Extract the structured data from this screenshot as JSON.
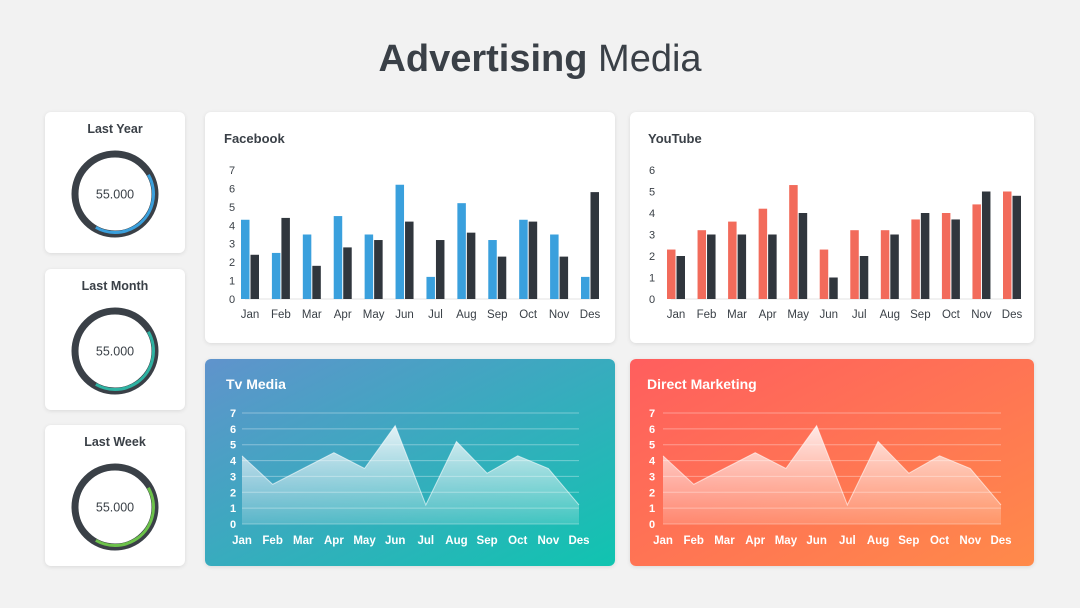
{
  "title": {
    "bold": "Advertising",
    "normal": "Media"
  },
  "stats": [
    {
      "label": "Last Year",
      "value": "55.000",
      "fraction": 0.4,
      "color": "#3aa0dd"
    },
    {
      "label": "Last Month",
      "value": "55.000",
      "fraction": 0.4,
      "color": "#2fb3a3"
    },
    {
      "label": "Last Week",
      "value": "55.000",
      "fraction": 0.4,
      "color": "#6cc24a"
    }
  ],
  "chart_data": [
    {
      "id": "facebook",
      "type": "bar",
      "title": "Facebook",
      "categories": [
        "Jan",
        "Feb",
        "Mar",
        "Apr",
        "May",
        "Jun",
        "Jul",
        "Aug",
        "Sep",
        "Oct",
        "Nov",
        "Des"
      ],
      "series": [
        {
          "values": [
            4.3,
            2.5,
            3.5,
            4.5,
            3.5,
            6.2,
            1.2,
            5.2,
            3.2,
            4.3,
            3.5,
            1.2
          ],
          "color": "#3aa0dd"
        },
        {
          "values": [
            2.4,
            4.4,
            1.8,
            2.8,
            3.2,
            4.2,
            3.2,
            3.6,
            2.3,
            4.2,
            2.3,
            5.8
          ],
          "color": "#30363d"
        }
      ],
      "yticks": [
        0,
        1,
        2,
        3,
        4,
        5,
        6,
        7
      ],
      "ylim": [
        0,
        7
      ]
    },
    {
      "id": "youtube",
      "type": "bar",
      "title": "YouTube",
      "categories": [
        "Jan",
        "Feb",
        "Mar",
        "Apr",
        "May",
        "Jun",
        "Jul",
        "Aug",
        "Sep",
        "Oct",
        "Nov",
        "Des"
      ],
      "series": [
        {
          "values": [
            2.3,
            3.2,
            3.6,
            4.2,
            5.3,
            2.3,
            3.2,
            3.2,
            3.7,
            4.0,
            4.4,
            5.0
          ],
          "color": "#f26b5b"
        },
        {
          "values": [
            2.0,
            3.0,
            3.0,
            3.0,
            4.0,
            1.0,
            2.0,
            3.0,
            4.0,
            3.7,
            5.0,
            4.8
          ],
          "color": "#30363d"
        }
      ],
      "yticks": [
        0,
        1,
        2,
        3,
        4,
        5,
        6
      ],
      "ylim": [
        0,
        6
      ]
    },
    {
      "id": "tv",
      "type": "area",
      "title": "Tv Media",
      "categories": [
        "Jan",
        "Feb",
        "Mar",
        "Apr",
        "May",
        "Jun",
        "Jul",
        "Aug",
        "Sep",
        "Oct",
        "Nov",
        "Des"
      ],
      "series": [
        {
          "values": [
            4.3,
            2.5,
            3.5,
            4.5,
            3.5,
            6.2,
            1.2,
            5.2,
            3.2,
            4.3,
            3.5,
            1.2
          ]
        }
      ],
      "yticks": [
        0,
        1,
        2,
        3,
        4,
        5,
        6,
        7
      ],
      "ylim": [
        0,
        7
      ],
      "background": [
        "#6093cc",
        "#10c4b0"
      ]
    },
    {
      "id": "direct",
      "type": "area",
      "title": "Direct Marketing",
      "categories": [
        "Jan",
        "Feb",
        "Mar",
        "Apr",
        "May",
        "Jun",
        "Jul",
        "Aug",
        "Sep",
        "Oct",
        "Nov",
        "Des"
      ],
      "series": [
        {
          "values": [
            4.3,
            2.5,
            3.5,
            4.5,
            3.5,
            6.2,
            1.2,
            5.2,
            3.2,
            4.3,
            3.5,
            1.2
          ]
        }
      ],
      "yticks": [
        0,
        1,
        2,
        3,
        4,
        5,
        6,
        7
      ],
      "ylim": [
        0,
        7
      ],
      "background": [
        "#ff5e5e",
        "#ff8a4a"
      ]
    }
  ]
}
